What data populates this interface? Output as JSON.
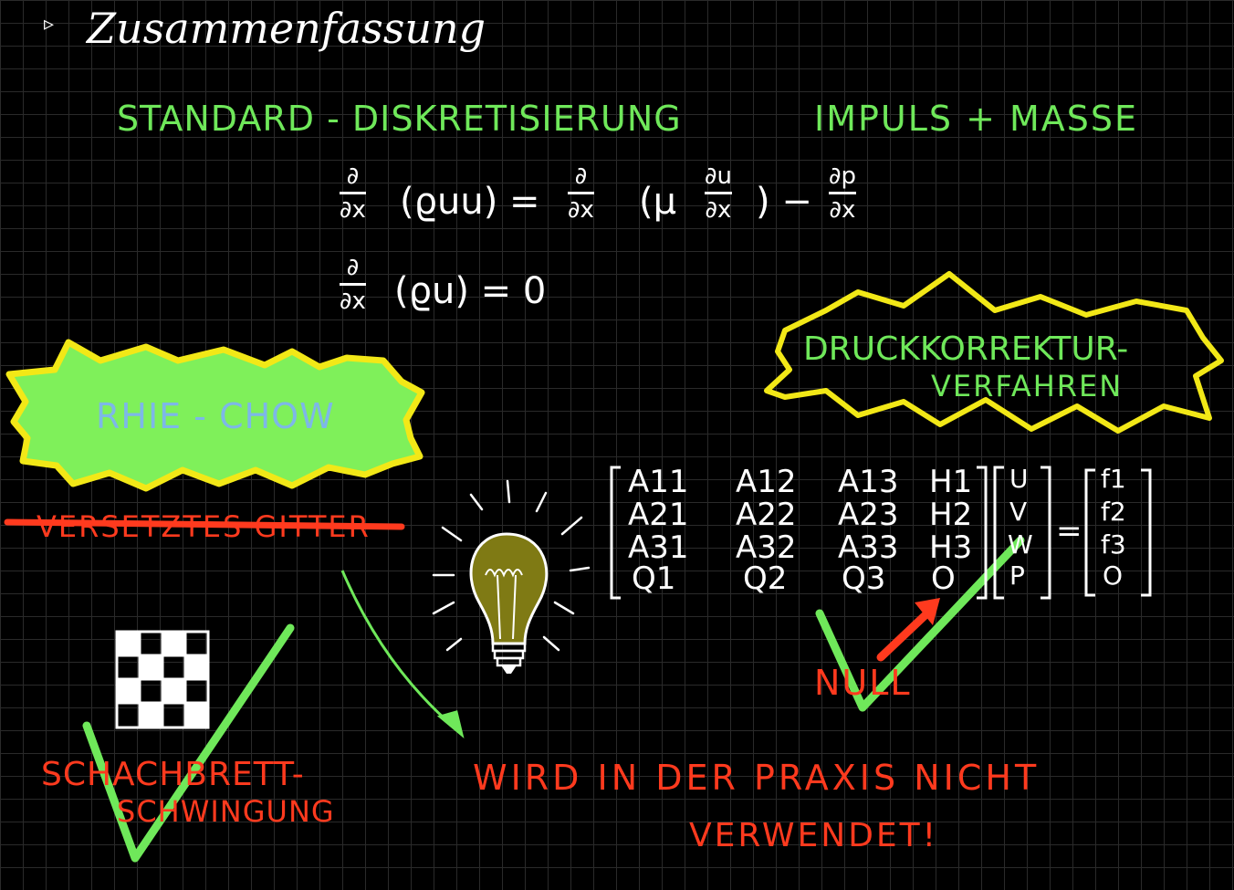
{
  "colors": {
    "background": "#000000",
    "grid": "#2a2a2a",
    "white": "#ffffff",
    "green": "#6fe85a",
    "yellow": "#f2e817",
    "light_blue": "#7db7e8",
    "red": "#ff3a1e",
    "bulb": "#7f7a14"
  },
  "icons": [
    "bullet-arrow-icon",
    "lightbulb-icon",
    "checkmark-icon",
    "checkerboard-icon",
    "down-arrow-icon"
  ],
  "header": {
    "bullet": "▹",
    "title": "Zusammenfassung"
  },
  "subtitle": {
    "left": "STANDARD - DISKRETISIERUNG",
    "right": "IMPULS + MASSE"
  },
  "equation1": {
    "d1_num": "∂",
    "d1_den": "∂x",
    "term1": "(ϱuu) =",
    "d2_num": "∂",
    "d2_den": "∂x",
    "mu": "(μ",
    "d3_num": "∂u",
    "d3_den": "∂x",
    "close": ") −",
    "d4_num": "∂p",
    "d4_den": "∂x"
  },
  "equation2": {
    "d_num": "∂",
    "d_den": "∂x",
    "body": "(ϱu)  = 0"
  },
  "rhie_chow": "RHIE - CHOW",
  "versetztes_gitter": "VERSETZTES GITTER",
  "druckkorrektur": {
    "line1": "DRUCKKORREKTUR-",
    "line2": "VERFAHREN"
  },
  "matrix": {
    "rows": [
      [
        "A11",
        "A12",
        "A13",
        "H1"
      ],
      [
        "A21",
        "A22",
        "A23",
        "H2"
      ],
      [
        "A31",
        "A32",
        "A33",
        "H3"
      ],
      [
        "Q1",
        "Q2",
        "Q3",
        "O"
      ]
    ],
    "unknowns": [
      "U",
      "V",
      "W",
      "P"
    ],
    "equals": "=",
    "rhs": [
      "f1",
      "f2",
      "f3",
      "O"
    ]
  },
  "null_label": "NULL",
  "schachbrett": {
    "line1": "SCHACHBRETT-",
    "line2": "SCHWINGUNG"
  },
  "praxis": {
    "line1": "WIRD IN DER PRAXIS NICHT",
    "line2": "VERWENDET!"
  }
}
